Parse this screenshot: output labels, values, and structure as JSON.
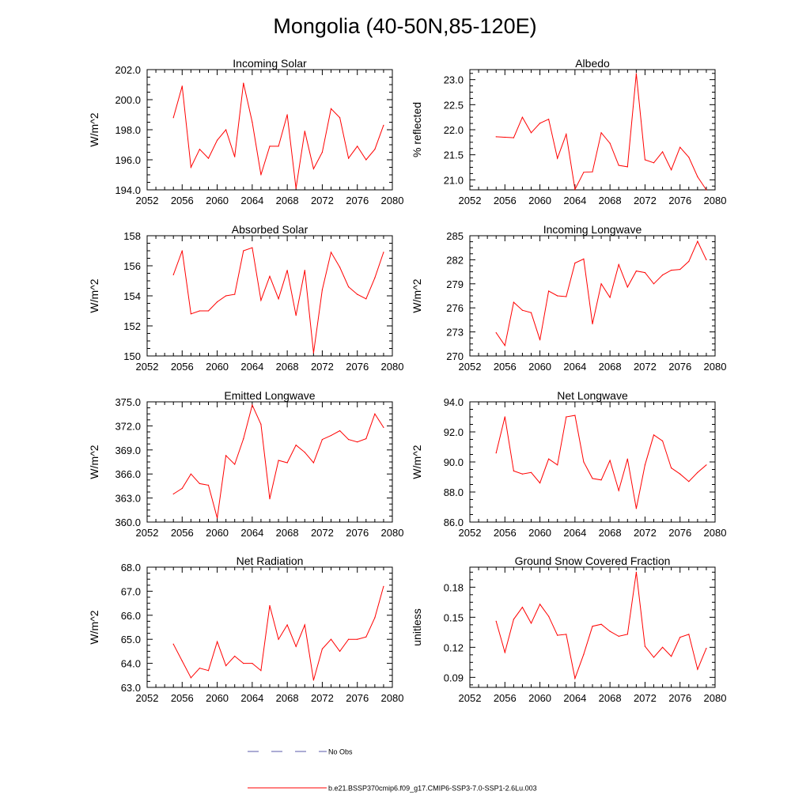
{
  "title": "Mongolia (40-50N,85-120E)",
  "legend": {
    "obs_label": "No Obs",
    "model_label": "b.e21.BSSP370cmip6.f09_g17.CMIP6-SSP3-7.0-SSP1-2.6Lu.003",
    "obs_color": "#5a5aa8",
    "model_color": "#ff0000"
  },
  "chart_data": [
    {
      "type": "line",
      "title": "Incoming Solar",
      "xlabel": "",
      "ylabel": "W/m^2",
      "xlim": [
        2052,
        2080
      ],
      "ylim": [
        194,
        202
      ],
      "xticks": [
        "2052",
        "2056",
        "2060",
        "2064",
        "2068",
        "2072",
        "2076",
        "2080"
      ],
      "yticks": [
        "194.0",
        "196.0",
        "198.0",
        "200.0",
        "202.0"
      ],
      "x": [
        2055,
        2056,
        2057,
        2058,
        2059,
        2060,
        2061,
        2062,
        2063,
        2064,
        2065,
        2066,
        2067,
        2068,
        2069,
        2070,
        2071,
        2072,
        2073,
        2074,
        2075,
        2076,
        2077,
        2078,
        2079
      ],
      "series": [
        {
          "values": [
            198.8,
            200.9,
            195.5,
            196.7,
            196.1,
            197.3,
            198.0,
            196.2,
            201.1,
            198.5,
            195.0,
            196.9,
            196.9,
            199.0,
            194.1,
            197.9,
            195.4,
            196.5,
            199.4,
            198.8,
            196.1,
            196.9,
            196.0,
            196.7,
            198.3
          ]
        }
      ]
    },
    {
      "type": "line",
      "title": "Albedo",
      "xlabel": "",
      "ylabel": "% reflected",
      "xlim": [
        2052,
        2080
      ],
      "ylim": [
        20.8,
        23.2
      ],
      "xticks": [
        "2052",
        "2056",
        "2060",
        "2064",
        "2068",
        "2072",
        "2076",
        "2080"
      ],
      "yticks": [
        "21.0",
        "21.5",
        "22.0",
        "22.5",
        "23.0"
      ],
      "x": [
        2055,
        2056,
        2057,
        2058,
        2059,
        2060,
        2061,
        2062,
        2063,
        2064,
        2065,
        2066,
        2067,
        2068,
        2069,
        2070,
        2071,
        2072,
        2073,
        2074,
        2075,
        2076,
        2077,
        2078,
        2079
      ],
      "series": [
        {
          "values": [
            21.86,
            21.85,
            21.84,
            22.25,
            21.94,
            22.13,
            22.21,
            21.43,
            21.91,
            20.81,
            21.15,
            21.16,
            21.94,
            21.73,
            21.29,
            21.26,
            23.12,
            21.4,
            21.34,
            21.56,
            21.2,
            21.65,
            21.45,
            21.06,
            20.8
          ]
        }
      ]
    },
    {
      "type": "line",
      "title": "Absorbed Solar",
      "xlabel": "",
      "ylabel": "W/m^2",
      "xlim": [
        2052,
        2080
      ],
      "ylim": [
        150,
        158
      ],
      "xticks": [
        "2052",
        "2056",
        "2060",
        "2064",
        "2068",
        "2072",
        "2076",
        "2080"
      ],
      "yticks": [
        "150",
        "152",
        "154",
        "156",
        "158"
      ],
      "x": [
        2055,
        2056,
        2057,
        2058,
        2059,
        2060,
        2061,
        2062,
        2063,
        2064,
        2065,
        2066,
        2067,
        2068,
        2069,
        2070,
        2071,
        2072,
        2073,
        2074,
        2075,
        2076,
        2077,
        2078,
        2079
      ],
      "series": [
        {
          "values": [
            155.4,
            157.0,
            152.8,
            153.0,
            153.0,
            153.6,
            154.0,
            154.1,
            157.0,
            157.2,
            153.7,
            155.3,
            153.8,
            155.7,
            152.7,
            155.7,
            150.2,
            154.4,
            156.9,
            155.9,
            154.6,
            154.1,
            153.8,
            155.2,
            156.9
          ]
        }
      ]
    },
    {
      "type": "line",
      "title": "Incoming Longwave",
      "xlabel": "",
      "ylabel": "W/m^2",
      "xlim": [
        2052,
        2080
      ],
      "ylim": [
        270,
        285
      ],
      "xticks": [
        "2052",
        "2056",
        "2060",
        "2064",
        "2068",
        "2072",
        "2076",
        "2080"
      ],
      "yticks": [
        "270",
        "273",
        "276",
        "279",
        "282",
        "285"
      ],
      "x": [
        2055,
        2056,
        2057,
        2058,
        2059,
        2060,
        2061,
        2062,
        2063,
        2064,
        2065,
        2066,
        2067,
        2068,
        2069,
        2070,
        2071,
        2072,
        2073,
        2074,
        2075,
        2076,
        2077,
        2078,
        2079
      ],
      "series": [
        {
          "values": [
            272.9,
            271.3,
            276.7,
            275.7,
            275.4,
            272.0,
            278.1,
            277.5,
            277.4,
            281.6,
            282.1,
            274.0,
            279.0,
            277.3,
            281.4,
            278.6,
            280.6,
            280.4,
            279.0,
            280.1,
            280.7,
            280.8,
            281.8,
            284.3,
            282.0
          ]
        }
      ]
    },
    {
      "type": "line",
      "title": "Emitted Longwave",
      "xlabel": "",
      "ylabel": "W/m^2",
      "xlim": [
        2052,
        2080
      ],
      "ylim": [
        360,
        375
      ],
      "xticks": [
        "2052",
        "2056",
        "2060",
        "2064",
        "2068",
        "2072",
        "2076",
        "2080"
      ],
      "yticks": [
        "360.0",
        "363.0",
        "366.0",
        "369.0",
        "372.0",
        "375.0"
      ],
      "x": [
        2055,
        2056,
        2057,
        2058,
        2059,
        2060,
        2061,
        2062,
        2063,
        2064,
        2065,
        2066,
        2067,
        2068,
        2069,
        2070,
        2071,
        2072,
        2073,
        2074,
        2075,
        2076,
        2077,
        2078,
        2079
      ],
      "series": [
        {
          "values": [
            363.5,
            364.2,
            366.0,
            364.8,
            364.6,
            360.5,
            368.3,
            367.2,
            370.4,
            374.6,
            372.2,
            362.9,
            367.7,
            367.4,
            369.6,
            368.7,
            367.4,
            370.3,
            370.8,
            371.4,
            370.3,
            370.0,
            370.4,
            373.5,
            371.8
          ]
        }
      ]
    },
    {
      "type": "line",
      "title": "Net Longwave",
      "xlabel": "",
      "ylabel": "W/m^2",
      "xlim": [
        2052,
        2080
      ],
      "ylim": [
        86,
        94
      ],
      "xticks": [
        "2052",
        "2056",
        "2060",
        "2064",
        "2068",
        "2072",
        "2076",
        "2080"
      ],
      "yticks": [
        "86.0",
        "88.0",
        "90.0",
        "92.0",
        "94.0"
      ],
      "x": [
        2055,
        2056,
        2057,
        2058,
        2059,
        2060,
        2061,
        2062,
        2063,
        2064,
        2065,
        2066,
        2067,
        2068,
        2069,
        2070,
        2071,
        2072,
        2073,
        2074,
        2075,
        2076,
        2077,
        2078,
        2079
      ],
      "series": [
        {
          "values": [
            90.6,
            93.0,
            89.4,
            89.2,
            89.3,
            88.6,
            90.2,
            89.8,
            93.0,
            93.1,
            90.0,
            88.9,
            88.8,
            90.1,
            88.1,
            90.2,
            86.9,
            89.8,
            91.8,
            91.4,
            89.6,
            89.2,
            88.7,
            89.3,
            89.8
          ]
        }
      ]
    },
    {
      "type": "line",
      "title": "Net Radiation",
      "xlabel": "",
      "ylabel": "W/m^2",
      "xlim": [
        2052,
        2080
      ],
      "ylim": [
        63,
        68
      ],
      "xticks": [
        "2052",
        "2056",
        "2060",
        "2064",
        "2068",
        "2072",
        "2076",
        "2080"
      ],
      "yticks": [
        "63.0",
        "64.0",
        "65.0",
        "66.0",
        "67.0",
        "68.0"
      ],
      "x": [
        2055,
        2056,
        2057,
        2058,
        2059,
        2060,
        2061,
        2062,
        2063,
        2064,
        2065,
        2066,
        2067,
        2068,
        2069,
        2070,
        2071,
        2072,
        2073,
        2074,
        2075,
        2076,
        2077,
        2078,
        2079
      ],
      "series": [
        {
          "values": [
            64.8,
            64.1,
            63.4,
            63.8,
            63.7,
            64.9,
            63.9,
            64.3,
            64.0,
            64.0,
            63.7,
            66.4,
            65.0,
            65.6,
            64.7,
            65.6,
            63.3,
            64.6,
            65.0,
            64.5,
            65.0,
            65.0,
            65.1,
            65.9,
            67.2
          ]
        }
      ]
    },
    {
      "type": "line",
      "title": "Ground Snow Covered Fraction",
      "xlabel": "",
      "ylabel": "unitless",
      "xlim": [
        2052,
        2080
      ],
      "ylim": [
        0.08,
        0.2
      ],
      "xticks": [
        "2052",
        "2056",
        "2060",
        "2064",
        "2068",
        "2072",
        "2076",
        "2080"
      ],
      "yticks": [
        "0.09",
        "0.12",
        "0.15",
        "0.18"
      ],
      "x": [
        2055,
        2056,
        2057,
        2058,
        2059,
        2060,
        2061,
        2062,
        2063,
        2064,
        2065,
        2066,
        2067,
        2068,
        2069,
        2070,
        2071,
        2072,
        2073,
        2074,
        2075,
        2076,
        2077,
        2078,
        2079
      ],
      "series": [
        {
          "values": [
            0.146,
            0.115,
            0.148,
            0.16,
            0.144,
            0.163,
            0.151,
            0.132,
            0.133,
            0.089,
            0.113,
            0.141,
            0.143,
            0.136,
            0.131,
            0.133,
            0.195,
            0.121,
            0.11,
            0.12,
            0.111,
            0.13,
            0.133,
            0.098,
            0.119
          ]
        }
      ]
    }
  ]
}
